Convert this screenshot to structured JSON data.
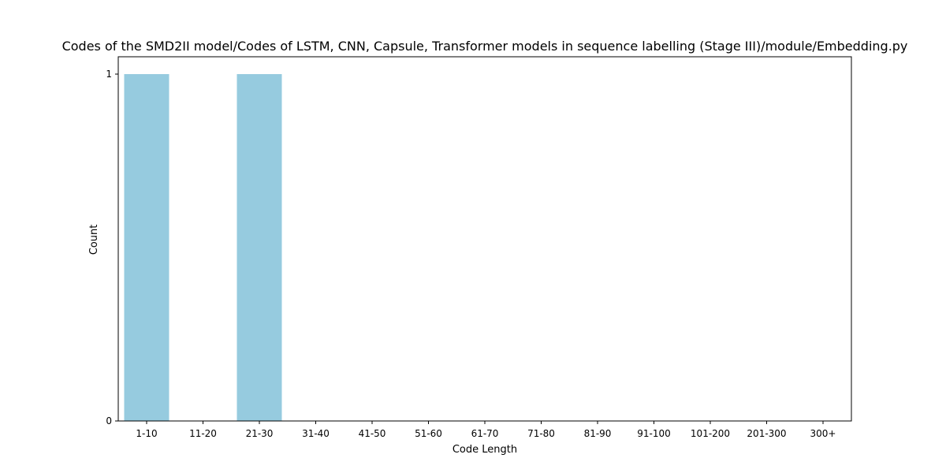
{
  "chart_data": {
    "type": "bar",
    "title": "Codes of the SMD2II model/Codes of LSTM, CNN, Capsule, Transformer models in sequence labelling (Stage III)/module/Embedding.py",
    "xlabel": "Code Length",
    "ylabel": "Count",
    "categories": [
      "1-10",
      "11-20",
      "21-30",
      "31-40",
      "41-50",
      "51-60",
      "61-70",
      "71-80",
      "81-90",
      "91-100",
      "101-200",
      "201-300",
      "300+"
    ],
    "values": [
      1,
      0,
      1,
      0,
      0,
      0,
      0,
      0,
      0,
      0,
      0,
      0,
      0
    ],
    "ylim": [
      0,
      1
    ],
    "yticks": [
      0,
      1
    ],
    "grid": false,
    "bar_color": "#96CBDF"
  }
}
